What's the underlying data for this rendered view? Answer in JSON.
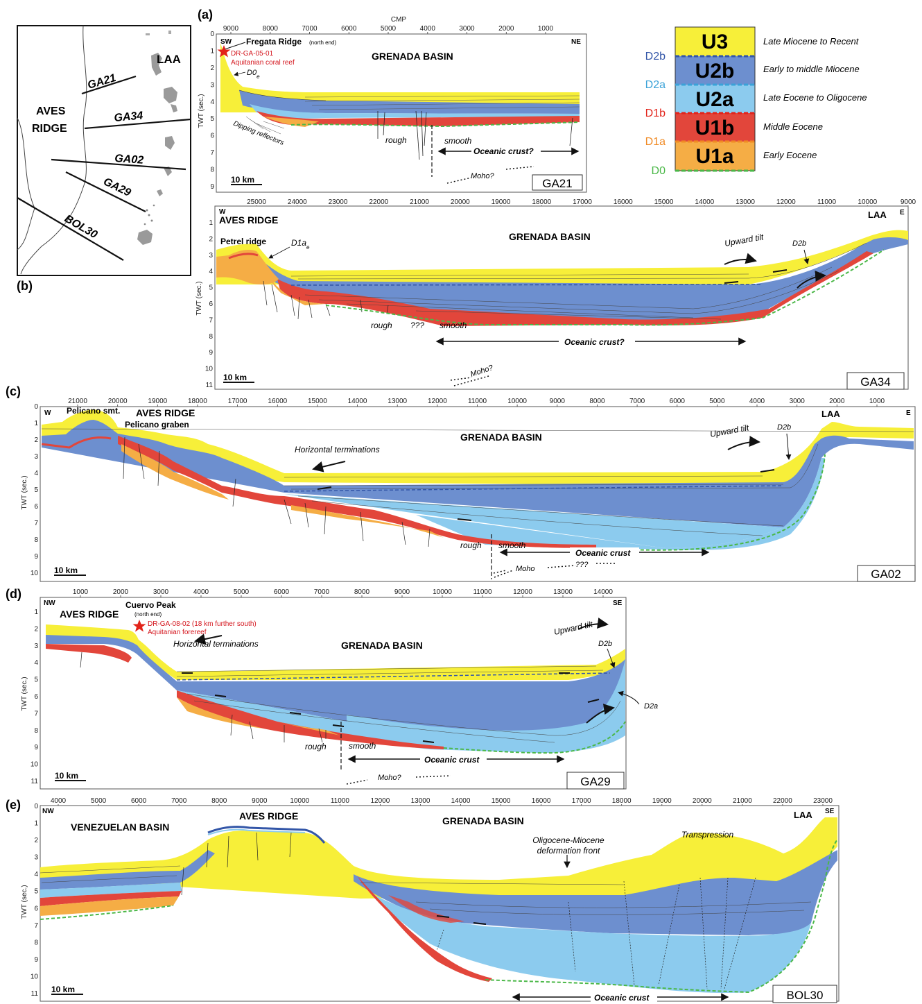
{
  "colors": {
    "U3": "#f7ef39",
    "U2b": "#6d8fcf",
    "U2a": "#8ccbee",
    "U1b": "#e2463b",
    "U1a": "#f5ad45",
    "D0": "#4bb848",
    "D1a": "#f08a24",
    "D1b": "#e2231a",
    "D2a": "#3aa2d8",
    "D2b": "#3356a8",
    "star": "#e2231a"
  },
  "panel_labels": {
    "a": "(a)",
    "b": "(b)",
    "c": "(c)",
    "d": "(d)",
    "e": "(e)"
  },
  "map": {
    "laa": "LAA",
    "aves1": "AVES",
    "aves2": "RIDGE",
    "lines": [
      "GA21",
      "GA34",
      "GA02",
      "GA29",
      "BOL30"
    ]
  },
  "legend": {
    "units": [
      {
        "unit": "U3",
        "age": "Late Miocene to Recent"
      },
      {
        "unit": "U2b",
        "age": "Early to middle Miocene"
      },
      {
        "unit": "U2a",
        "age": "Late Eocene to Oligocene"
      },
      {
        "unit": "U1b",
        "age": "Middle Eocene"
      },
      {
        "unit": "U1a",
        "age": "Early Eocene"
      }
    ],
    "boundaries": [
      "D2b",
      "D2a",
      "D1b",
      "D1a",
      "D0"
    ]
  },
  "common": {
    "twt": "TWT (sec.)",
    "scale": "10 km",
    "grenada": "GRENADA BASIN",
    "aves": "AVES RIDGE",
    "laa": "LAA",
    "rough": "rough",
    "smooth": "smooth",
    "oc_q": "Oceanic crust?",
    "oc": "Oceanic crust",
    "moho_q": "Moho?",
    "moho": "Moho",
    "qqq": "???",
    "upward": "Upward tilt",
    "horiz": "Horizontal terminations"
  },
  "ga21": {
    "cmp": "CMP",
    "xticks": [
      "9000",
      "8000",
      "7000",
      "6000",
      "5000",
      "4000",
      "3000",
      "2000",
      "1000"
    ],
    "yticks": [
      "0",
      "1",
      "2",
      "3",
      "4",
      "5",
      "6",
      "7",
      "8",
      "9"
    ],
    "sw": "SW",
    "ne": "NE",
    "fregata": "Fregata Ridge",
    "fregata_note": "(north end)",
    "sample": "DR-GA-05-01",
    "sample_desc": "Aquitanian coral reef",
    "d0": "D0",
    "d0_sub": "e",
    "dipping": "Dipping reflectors",
    "name": "GA21"
  },
  "ga34": {
    "xticks": [
      "25000",
      "24000",
      "23000",
      "22000",
      "21000",
      "20000",
      "19000",
      "18000",
      "17000",
      "16000",
      "15000",
      "14000",
      "13000",
      "12000",
      "11000",
      "10000",
      "9000"
    ],
    "yticks": [
      "1",
      "2",
      "3",
      "4",
      "5",
      "6",
      "7",
      "8",
      "9",
      "10",
      "11"
    ],
    "w": "W",
    "e": "E",
    "petrel": "Petrel ridge",
    "d1a": "D1a",
    "d1a_sub": "e",
    "d2b": "D2b",
    "name": "GA34"
  },
  "ga02": {
    "xticks": [
      "21000",
      "20000",
      "19000",
      "18000",
      "17000",
      "16000",
      "15000",
      "14000",
      "13000",
      "12000",
      "11000",
      "10000",
      "9000",
      "8000",
      "7000",
      "6000",
      "5000",
      "4000",
      "3000",
      "2000",
      "1000"
    ],
    "yticks": [
      "0",
      "1",
      "2",
      "3",
      "4",
      "5",
      "6",
      "7",
      "8",
      "9",
      "10"
    ],
    "w": "W",
    "e": "E",
    "pelicano_smt": "Pelicano smt.",
    "pelicano_graben": "Pelicano graben",
    "d2b": "D2b",
    "name": "GA02"
  },
  "ga29": {
    "xticks": [
      "1000",
      "2000",
      "3000",
      "4000",
      "5000",
      "6000",
      "7000",
      "8000",
      "9000",
      "10000",
      "11000",
      "12000",
      "13000",
      "14000"
    ],
    "yticks": [
      "1",
      "2",
      "3",
      "4",
      "5",
      "6",
      "7",
      "8",
      "9",
      "10",
      "11"
    ],
    "nw": "NW",
    "se": "SE",
    "cuervo": "Cuervo Peak",
    "cuervo_note": "(north end)",
    "sample": "DR-GA-08-02 (18 km further south)",
    "sample_desc": "Aquitanian forereef",
    "d2b": "D2b",
    "d2a": "D2a",
    "name": "GA29"
  },
  "bol30": {
    "xticks": [
      "4000",
      "5000",
      "6000",
      "7000",
      "8000",
      "9000",
      "10000",
      "11000",
      "12000",
      "13000",
      "14000",
      "15000",
      "16000",
      "17000",
      "18000",
      "19000",
      "20000",
      "21000",
      "22000",
      "23000"
    ],
    "yticks": [
      "0",
      "1",
      "2",
      "3",
      "4",
      "5",
      "6",
      "7",
      "8",
      "9",
      "10",
      "11"
    ],
    "nw": "NW",
    "se": "SE",
    "venezuelan": "VENEZUELAN BASIN",
    "olig1": "Oligocene-Miocene",
    "olig2": "deformation front",
    "transpression": "Transpression",
    "name": "BOL30"
  }
}
